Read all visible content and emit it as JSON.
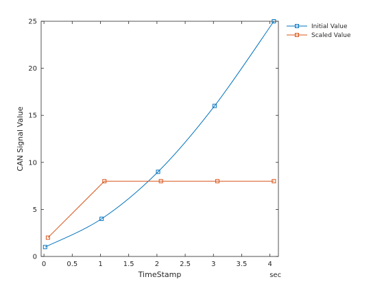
{
  "chart_data": {
    "type": "line",
    "xlabel": "TimeStamp",
    "ylabel": "CAN Signal Value",
    "x_unit": "sec",
    "xlim": [
      -0.05,
      4.15
    ],
    "ylim": [
      0,
      25
    ],
    "xticks": [
      0,
      0.5,
      1,
      1.5,
      2,
      2.5,
      3,
      3.5,
      4
    ],
    "xtick_labels": [
      "0",
      "0.5",
      "1",
      "1.5",
      "2",
      "2.5",
      "3",
      "3.5",
      "4"
    ],
    "yticks": [
      0,
      5,
      10,
      15,
      20,
      25
    ],
    "ytick_labels": [
      "0",
      "5",
      "10",
      "15",
      "20",
      "25"
    ],
    "grid": false,
    "legend_position": "outside-top-right",
    "series": [
      {
        "name": "Initial Value",
        "color": "#0072BD",
        "marker": "square",
        "x": [
          0.02,
          1.02,
          2.02,
          3.02,
          4.07
        ],
        "y": [
          1,
          4,
          9,
          16,
          25
        ],
        "smooth": true
      },
      {
        "name": "Scaled Value",
        "color": "#D95319",
        "marker": "square",
        "x": [
          0.07,
          1.07,
          2.07,
          3.07,
          4.07
        ],
        "y": [
          2,
          8,
          8,
          8,
          8
        ],
        "smooth": false
      }
    ]
  }
}
